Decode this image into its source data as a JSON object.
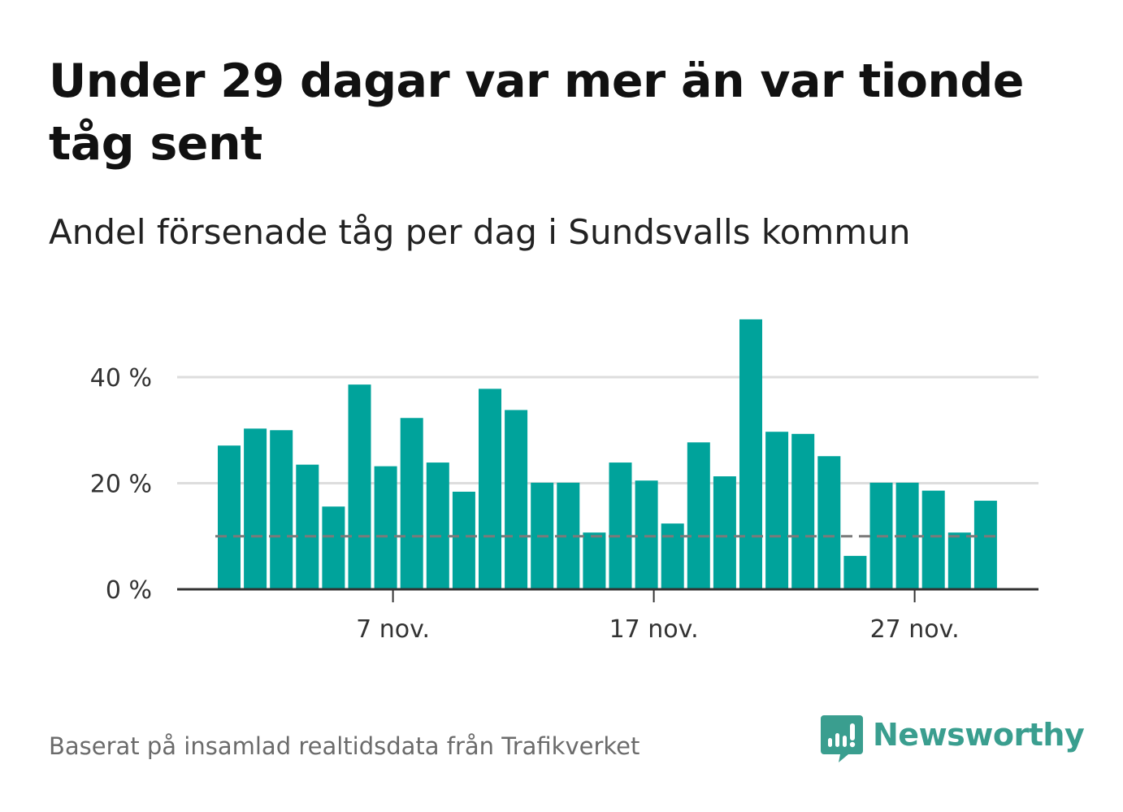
{
  "title": "Under 29 dagar var mer än var tionde tåg sent",
  "subtitle": "Andel försenade tåg per dag i Sundsvalls kommun",
  "source": "Baserat på insamlad realtidsdata från Trafikverket",
  "brand": {
    "name": "Newsworthy",
    "icon": "newsworthy-logo-icon",
    "color": "#3a9e8f"
  },
  "colors": {
    "bar": "#00a39b",
    "reference_line": "#7a7a7a",
    "grid": "#dddddd",
    "axis": "#333333"
  },
  "chart_data": {
    "type": "bar",
    "x_unit": "day of November",
    "categories": [
      1,
      2,
      3,
      4,
      5,
      6,
      7,
      8,
      9,
      10,
      11,
      12,
      13,
      14,
      15,
      16,
      17,
      18,
      19,
      20,
      21,
      22,
      23,
      24,
      25,
      26,
      27,
      28,
      29,
      30
    ],
    "values": [
      27.1,
      30.3,
      30.0,
      23.5,
      15.6,
      38.6,
      23.2,
      32.3,
      23.9,
      18.4,
      37.8,
      33.8,
      20.1,
      20.1,
      10.7,
      23.9,
      20.5,
      12.4,
      27.7,
      21.3,
      50.9,
      29.7,
      29.3,
      25.1,
      6.3,
      20.1,
      20.1,
      18.6,
      10.7,
      16.7
    ],
    "reference_line": 10,
    "ylim": [
      0,
      52
    ],
    "yticks": [
      0,
      20,
      40
    ],
    "ytick_labels": [
      "0 %",
      "20 %",
      "40 %"
    ],
    "xticks": [
      7,
      17,
      27
    ],
    "xtick_labels": [
      "7 nov.",
      "17 nov.",
      "27 nov."
    ],
    "xlabel": "",
    "ylabel": "",
    "grid": true
  }
}
